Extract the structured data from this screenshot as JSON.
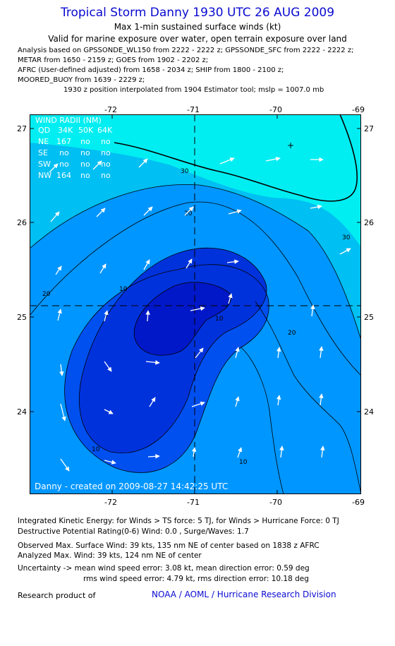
{
  "header": {
    "title": "Tropical Storm Danny 1930 UTC 26 AUG 2009",
    "subtitle": "Max 1-min sustained surface winds (kt)",
    "valid_note": "Valid for marine exposure over water, open terrain exposure over land"
  },
  "analysis_sources": [
    "Analysis based on  GPSSONDE_WL150 from 2222 - 2222 z;  GPSSONDE_SFC from 2222 - 2222 z;",
    "METAR from 1650 - 2159 z;  GOES from 1902 - 2202 z;",
    "AFRC (User-defined adjusted) from 1658 - 2034 z;  SHIP from 1800 - 2100 z;",
    "MOORED_BUOY from 1639 - 2229 z;",
    "1930 z position interpolated from 1904 Estimator tool; mslp = 1007.0 mb"
  ],
  "map": {
    "lon_labels": [
      "-72",
      "-71",
      "-70",
      "-69"
    ],
    "lat_labels": [
      "27",
      "26",
      "25",
      "24"
    ],
    "lon_range": [
      -72.99,
      -69.01
    ],
    "lat_range": [
      23.19,
      27.21
    ],
    "center": {
      "lon": -71.0,
      "lat": 25.11
    },
    "contour_labels": [
      "30",
      "30",
      "20",
      "20",
      "20",
      "10",
      "10",
      "10",
      "10"
    ],
    "wind_radii": {
      "title": "WIND RADII (NM)",
      "header": [
        "QD",
        "34K",
        "50K",
        "64K"
      ],
      "rows": [
        [
          "NE",
          "167",
          "no",
          "no"
        ],
        [
          "SE",
          "no",
          "no",
          "no"
        ],
        [
          "SW",
          "no",
          "no",
          "no"
        ],
        [
          "NW",
          "164",
          "no",
          "no"
        ]
      ]
    },
    "created_text": "Danny - created on 2009-08-27 14:42:25 UTC",
    "colors": {
      "band_above_30": "#00eef2",
      "band_20_30": "#00bff2",
      "band_10_20": "#0096ff",
      "band_0_10": "#0050f0",
      "band_inner": "#0032dc",
      "band_core": "#0018c8"
    }
  },
  "footer": {
    "ike": "Integrated Kinetic Energy:  for Winds > TS force: 5 TJ,  for Winds > Hurricane Force: 0 TJ",
    "dpr": "Destructive Potential Rating(0-6)   Wind: 0.0 , Surge/Waves: 1.7",
    "obs_max": "Observed Max. Surface Wind: 39 kts, 135 nm NE of center based on 1838 z AFRC",
    "ana_max": "Analyzed Max. Wind: 39 kts, 124 nm NE of center",
    "uncert_1": "Uncertainty -> mean wind speed error: 3.08 kt,   mean direction error: 0.59 deg",
    "uncert_2": "rms wind speed error: 4.79 kt,   rms direction error: 10.18 deg",
    "credit_label": "Research product of",
    "credit_link": "NOAA / AOML / Hurricane Research Division"
  }
}
